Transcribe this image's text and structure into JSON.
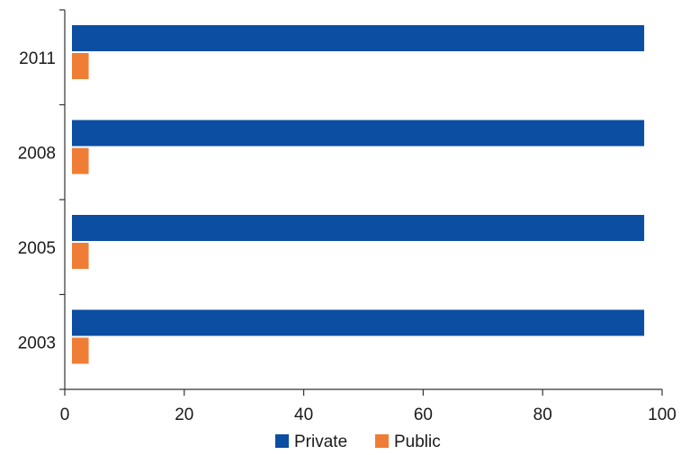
{
  "chart_data": {
    "type": "bar",
    "orientation": "horizontal",
    "categories": [
      "2011",
      "2008",
      "2005",
      "2003"
    ],
    "series": [
      {
        "name": "Private",
        "values": [
          97,
          97,
          97,
          97
        ],
        "color": "#0b4ea2"
      },
      {
        "name": "Public",
        "values": [
          4,
          4,
          4,
          4
        ],
        "color": "#f07d36"
      }
    ],
    "xlim": [
      0,
      100
    ],
    "xticks": [
      0,
      20,
      40,
      60,
      80,
      100
    ],
    "title": "",
    "xlabel": "",
    "ylabel": "",
    "grid": false,
    "legend": {
      "position": "bottom-center"
    }
  }
}
